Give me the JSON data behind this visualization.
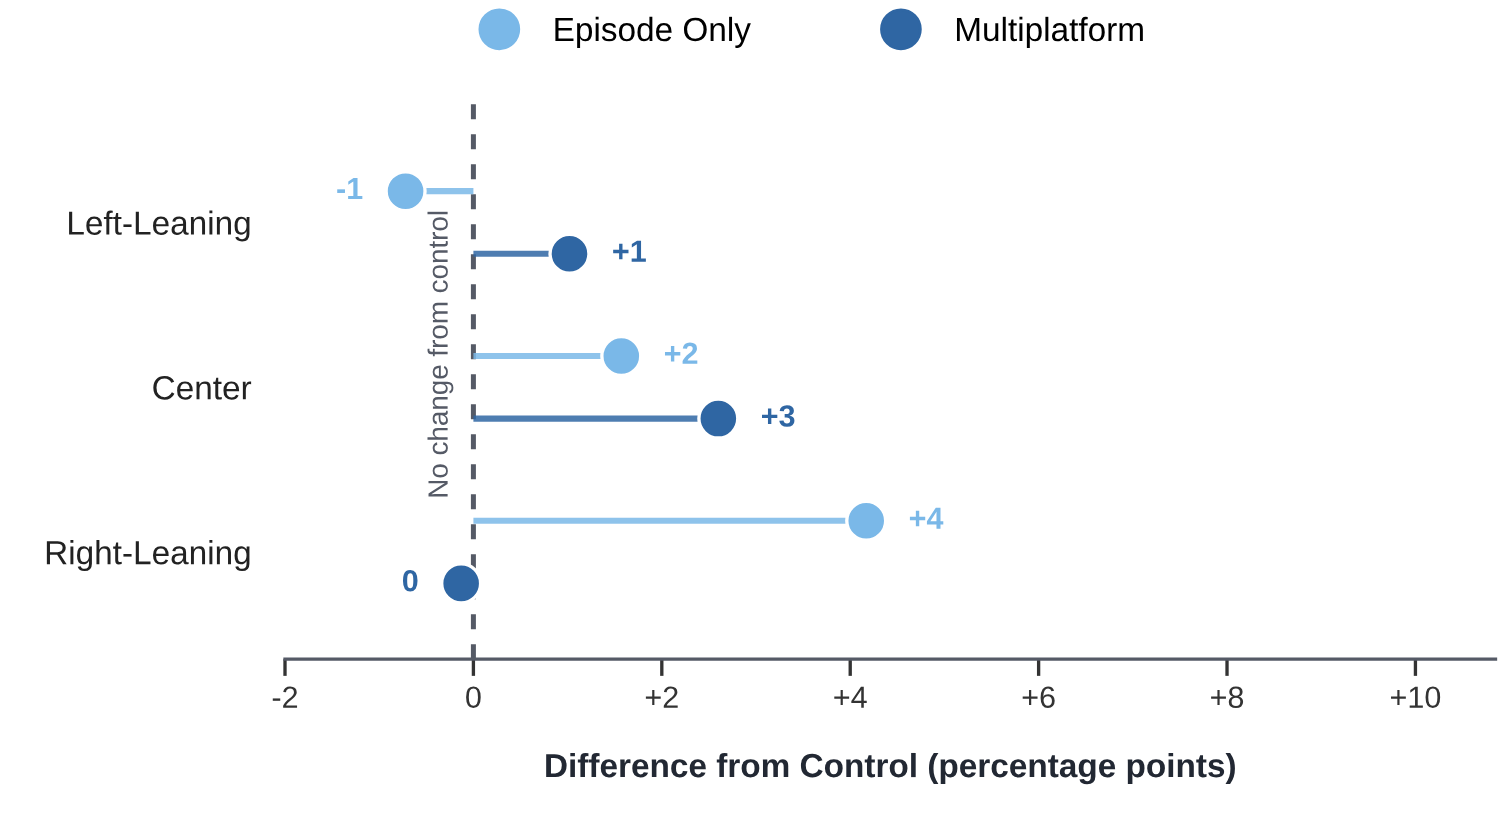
{
  "chart_data": {
    "type": "lollipop",
    "orientation": "horizontal",
    "xlabel": "Difference from Control (percentage points)",
    "categories": [
      "Left-Leaning",
      "Center",
      "Right-Leaning"
    ],
    "series": [
      {
        "name": "Episode Only",
        "color": "#7ab8e8",
        "values": [
          -0.72,
          1.57,
          4.17
        ],
        "value_labels": [
          "-1",
          "+2",
          "+4"
        ]
      },
      {
        "name": "Multiplatform",
        "color": "#2f66a3",
        "values": [
          1.02,
          2.6,
          -0.13
        ],
        "value_labels": [
          "+1",
          "+3",
          "0"
        ]
      }
    ],
    "xlim": [
      -2,
      10.85
    ],
    "xticks": [
      -2,
      0,
      {
        "value": 2,
        "label": "+2"
      },
      {
        "value": 4,
        "label": "+4"
      },
      {
        "value": 6,
        "label": "+6"
      },
      {
        "value": 8,
        "label": "+8"
      },
      {
        "value": 10,
        "label": "+10"
      }
    ],
    "ref_lines": [
      {
        "axis": "x",
        "value": 0,
        "label": "No change from control",
        "color": "#555a66",
        "line_style": "dashed"
      }
    ],
    "legend": "top",
    "grid": false,
    "marker": "circle"
  }
}
